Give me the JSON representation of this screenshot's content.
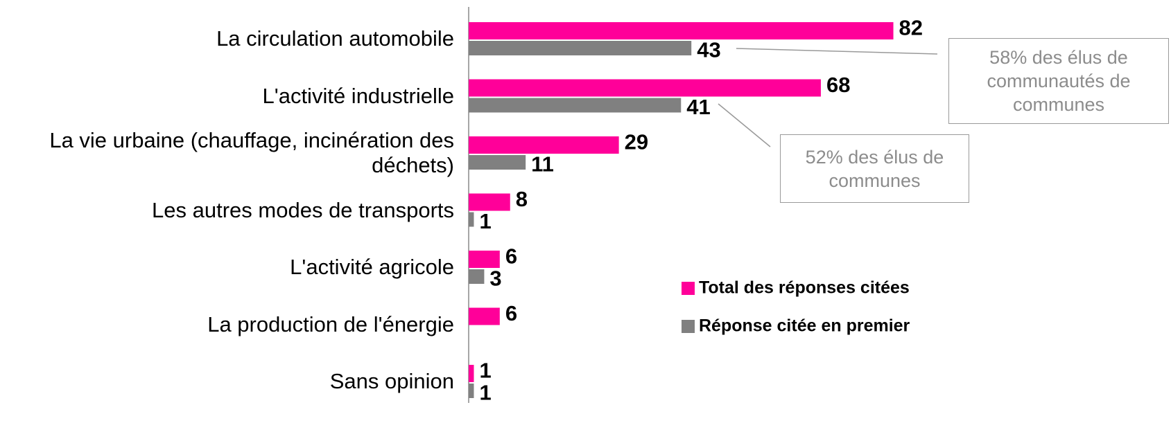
{
  "chart_data": {
    "type": "bar",
    "orientation": "horizontal",
    "categories": [
      "La circulation automobile",
      "L'activité industrielle",
      "La vie urbaine (chauffage, incinération des déchets)",
      "Les autres modes de transports",
      "L'activité agricole",
      "La production de l'énergie",
      "Sans opinion"
    ],
    "series": [
      {
        "name": "Total des réponses citées",
        "color": "#ff0099",
        "values": [
          82,
          68,
          29,
          8,
          6,
          6,
          1
        ]
      },
      {
        "name": "Réponse citée en premier",
        "color": "#808080",
        "values": [
          43,
          41,
          11,
          1,
          3,
          null,
          1
        ]
      }
    ],
    "xlim": [
      0,
      100
    ],
    "annotations": [
      "58% des élus de communautés de communes",
      "52% des élus de communes"
    ]
  }
}
